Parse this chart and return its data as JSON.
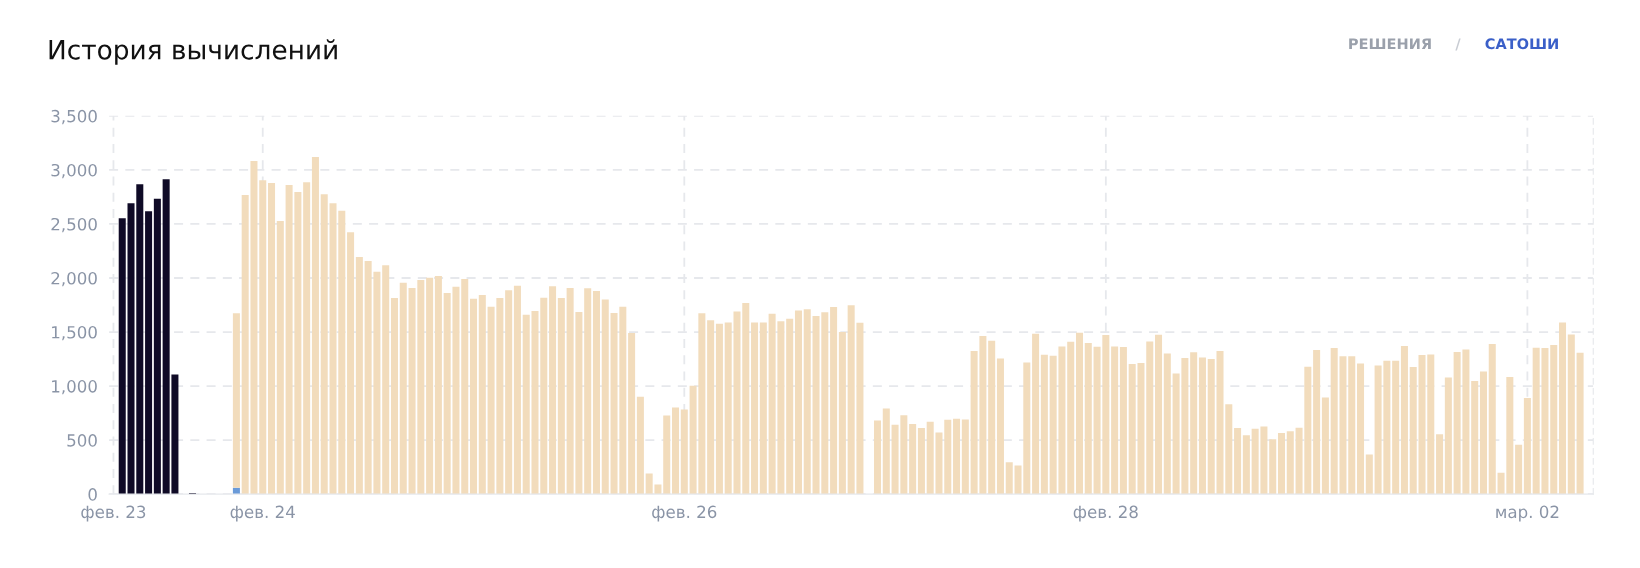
{
  "chart_data": {
    "type": "bar",
    "title": "История вычислений",
    "annotations": [
      "РЕШЕНИЯ",
      "/",
      "САТОШИ"
    ],
    "categories": [
      "фев. 23",
      null,
      null,
      null,
      null,
      null,
      null,
      null,
      null,
      null,
      null,
      null,
      null,
      null,
      null,
      null,
      null,
      "фев. 24",
      null,
      null,
      null,
      null,
      null,
      null,
      null,
      null,
      null,
      null,
      null,
      null,
      null,
      null,
      null,
      null,
      null,
      null,
      null,
      null,
      null,
      null,
      null,
      null,
      null,
      null,
      null,
      null,
      null,
      null,
      null,
      null,
      null,
      null,
      null,
      null,
      null,
      null,
      null,
      null,
      null,
      null,
      null,
      null,
      null,
      null,
      null,
      "фев. 26",
      null,
      null,
      null,
      null,
      null,
      null,
      null,
      null,
      null,
      null,
      null,
      null,
      null,
      null,
      null,
      null,
      null,
      null,
      null,
      null,
      null,
      null,
      null,
      null,
      null,
      null,
      null,
      null,
      null,
      null,
      null,
      null,
      null,
      null,
      null,
      null,
      null,
      null,
      null,
      null,
      null,
      null,
      null,
      null,
      null,
      null,
      null,
      "фев. 28",
      null,
      null,
      null,
      null,
      null,
      null,
      null,
      null,
      null,
      null,
      null,
      null,
      null,
      null,
      null,
      null,
      null,
      null,
      null,
      null,
      null,
      null,
      null,
      null,
      null,
      null,
      null,
      null,
      null,
      null,
      null,
      null,
      null,
      null,
      null,
      null,
      null,
      null,
      null,
      null,
      null,
      null,
      null,
      null,
      null,
      null,
      null,
      "мар. 02",
      null,
      null,
      null,
      null,
      null,
      null
    ],
    "stacked": true,
    "series": [
      {
        "color": "#0f0a26",
        "values": [
          null,
          2552,
          2691,
          2867,
          2617,
          2734,
          2913,
          1108,
          null,
          10,
          null,
          null,
          null,
          null,
          null,
          null,
          null,
          null,
          null,
          null,
          null,
          null,
          null,
          null,
          null,
          null,
          null,
          null,
          null,
          null,
          null,
          null,
          null,
          null,
          null,
          null,
          null,
          null,
          null,
          null,
          null,
          null,
          null,
          null,
          null,
          null,
          null,
          null,
          null,
          null,
          null,
          null,
          null,
          null,
          null,
          null,
          null,
          null,
          null,
          null,
          null,
          null,
          null,
          null,
          null,
          null,
          null,
          null,
          null,
          null,
          null,
          null,
          null,
          null,
          null,
          null,
          null,
          null,
          null,
          null,
          null,
          null,
          null,
          null,
          null,
          null,
          null,
          null,
          null,
          null,
          null,
          null,
          null,
          null,
          null,
          null,
          null,
          null,
          null,
          null,
          null,
          null,
          null,
          null,
          null,
          null,
          null,
          null,
          null,
          null,
          null,
          null,
          null,
          null,
          null,
          null,
          null,
          null,
          null,
          null,
          null,
          null,
          null,
          null,
          null,
          null,
          null,
          null,
          null,
          null,
          null,
          null,
          null,
          null,
          null,
          null,
          null,
          null,
          null,
          null,
          null,
          null,
          null,
          null,
          null,
          null,
          null,
          null,
          null,
          null,
          null,
          null,
          null,
          null,
          null,
          null,
          null,
          null,
          null,
          null,
          null,
          null,
          null,
          null,
          null,
          null,
          null,
          null
        ]
      },
      {
        "color": "#6a9ad8",
        "values": [
          null,
          null,
          null,
          null,
          null,
          null,
          null,
          null,
          null,
          null,
          null,
          null,
          null,
          null,
          60,
          null,
          null,
          null,
          null,
          null,
          null,
          null,
          null,
          null,
          null,
          null,
          null,
          null,
          null,
          null,
          null,
          null,
          null,
          null,
          null,
          null,
          null,
          null,
          null,
          null,
          null,
          null,
          null,
          null,
          null,
          null,
          null,
          null,
          null,
          null,
          null,
          null,
          null,
          null,
          null,
          null,
          null,
          null,
          null,
          null,
          null,
          null,
          null,
          null,
          null,
          null,
          null,
          null,
          null,
          null,
          null,
          null,
          null,
          null,
          null,
          null,
          null,
          null,
          null,
          null,
          null,
          null,
          null,
          null,
          null,
          null,
          null,
          null,
          null,
          null,
          null,
          null,
          null,
          null,
          null,
          null,
          null,
          null,
          null,
          null,
          null,
          null,
          null,
          null,
          null,
          null,
          null,
          null,
          null,
          null,
          null,
          null,
          null,
          null,
          null,
          null,
          null,
          null,
          null,
          null,
          null,
          null,
          null,
          null,
          null,
          null,
          null,
          null,
          null,
          null,
          null,
          null,
          null,
          null,
          null,
          null,
          null,
          null,
          null,
          null,
          null,
          null,
          null,
          null,
          null,
          null,
          null,
          null,
          null,
          null,
          null,
          null,
          null,
          null,
          null,
          null,
          null,
          null,
          null,
          null,
          null,
          null,
          null,
          null,
          null,
          null,
          null,
          null
        ]
      },
      {
        "color": "#f2dcbc",
        "values": [
          null,
          null,
          null,
          null,
          null,
          null,
          null,
          null,
          null,
          null,
          null,
          null,
          null,
          null,
          1613,
          2768,
          3083,
          2904,
          2879,
          2527,
          2861,
          2796,
          2885,
          3120,
          2774,
          2691,
          2623,
          2423,
          2194,
          2157,
          2058,
          2117,
          1815,
          1957,
          1907,
          1981,
          2003,
          2018,
          1861,
          1919,
          1990,
          1808,
          1842,
          1734,
          1815,
          1886,
          1929,
          1660,
          1694,
          1818,
          1923,
          1815,
          1907,
          1685,
          1904,
          1879,
          1802,
          1676,
          1734,
          1491,
          901,
          191,
          89,
          728,
          802,
          784,
          1003,
          1673,
          1608,
          1577,
          1589,
          1691,
          1768,
          1589,
          1589,
          1670,
          1599,
          1623,
          1700,
          1710,
          1648,
          1682,
          1731,
          1500,
          1747,
          1586,
          null,
          682,
          793,
          642,
          731,
          648,
          611,
          670,
          571,
          688,
          697,
          691,
          1324,
          1463,
          1420,
          1256,
          296,
          265,
          1219,
          1484,
          1290,
          1281,
          1367,
          1410,
          1494,
          1398,
          1364,
          1472,
          1367,
          1361,
          1204,
          1213,
          1413,
          1475,
          1302,
          1117,
          1259,
          1312,
          1265,
          1250,
          1324,
          833,
          611,
          546,
          605,
          626,
          509,
          565,
          583,
          614,
          1179,
          1333,
          895,
          1352,
          1275,
          1275,
          1210,
          367,
          1191,
          1234,
          1234,
          1370,
          1176,
          1287,
          1293,
          555,
          1080,
          1315,
          1339,
          1046,
          1136,
          1389,
          198,
          1083,
          457,
          889,
          1355,
          1352,
          1379,
          1589,
          1478,
          1308
        ]
      }
    ],
    "ylim": [
      0,
      3500
    ],
    "yticks": [
      0,
      {
        "value": 500,
        "label": "500"
      },
      {
        "value": 1000,
        "label": "1,000"
      },
      {
        "value": 1500,
        "label": "1,500"
      },
      {
        "value": 2000,
        "label": "2,000"
      },
      {
        "value": 2500,
        "label": "2,500"
      },
      {
        "value": 3000,
        "label": "3,000"
      },
      {
        "value": 3500,
        "label": "3,500"
      }
    ],
    "grid": true
  }
}
